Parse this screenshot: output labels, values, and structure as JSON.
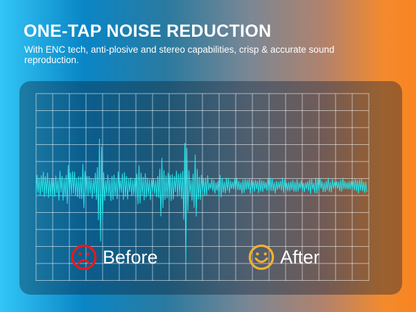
{
  "headline": "ONE-TAP NOISE REDUCTION",
  "subtitle": "With ENC tech, anti-plosive and stereo capabilities, crisp & accurate sound reproduction.",
  "labels": {
    "before": "Before",
    "after": "After"
  },
  "colors": {
    "wave": "#27e0e6",
    "before_icon": "#f01818",
    "after_icon": "#f3b12b",
    "grid": "#ffffff"
  },
  "icons": {
    "before": "sad-face-icon",
    "after": "smiley-face-icon"
  }
}
